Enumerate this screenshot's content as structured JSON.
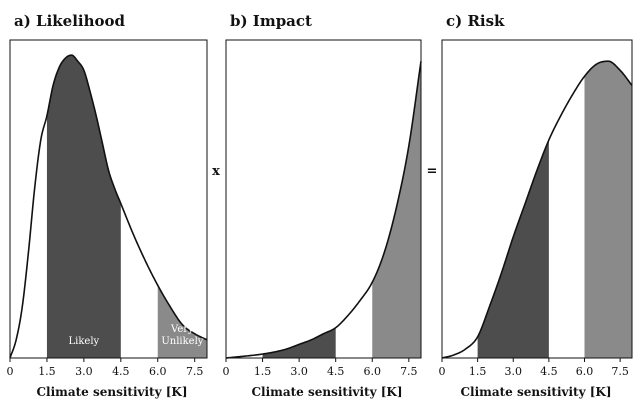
{
  "chart_data": [
    {
      "type": "area",
      "title": "a) Likelihood",
      "xlabel": "Climate sensitivity [K]",
      "ylabel": "",
      "xlim": [
        0,
        8
      ],
      "ylim": [
        0,
        1.05
      ],
      "xticks": [
        "0",
        "1.5",
        "3.0",
        "4.5",
        "6.0",
        "7.5"
      ],
      "x": [
        0,
        0.25,
        0.5,
        0.75,
        1.0,
        1.25,
        1.5,
        1.75,
        2.0,
        2.25,
        2.5,
        2.75,
        3.0,
        3.25,
        3.5,
        3.75,
        4.0,
        4.25,
        4.5,
        5.0,
        5.5,
        6.0,
        6.5,
        7.0,
        7.5,
        8.0
      ],
      "y": [
        0.0,
        0.06,
        0.17,
        0.35,
        0.56,
        0.72,
        0.8,
        0.9,
        0.96,
        0.99,
        1.0,
        0.98,
        0.95,
        0.88,
        0.8,
        0.71,
        0.62,
        0.56,
        0.51,
        0.41,
        0.32,
        0.24,
        0.17,
        0.11,
        0.08,
        0.06
      ],
      "regions": [
        {
          "from": 1.5,
          "to": 4.5,
          "label": "Likely",
          "color": "#4d4d4d"
        },
        {
          "from": 6.0,
          "to": 8.0,
          "label": "Very Unlikely",
          "color": "#8a8a8a"
        }
      ]
    },
    {
      "type": "area",
      "title": "b) Impact",
      "xlabel": "Climate sensitivity [K]",
      "ylabel": "",
      "xlim": [
        0,
        8
      ],
      "ylim": [
        0,
        1.05
      ],
      "xticks": [
        "0",
        "1.5",
        "3.0",
        "4.5",
        "6.0",
        "7.5"
      ],
      "x": [
        0,
        0.5,
        1.0,
        1.5,
        2.0,
        2.5,
        3.0,
        3.5,
        4.0,
        4.5,
        5.0,
        5.5,
        6.0,
        6.5,
        7.0,
        7.5,
        8.0
      ],
      "y": [
        0.0,
        0.004,
        0.008,
        0.013,
        0.02,
        0.03,
        0.045,
        0.06,
        0.08,
        0.1,
        0.14,
        0.19,
        0.25,
        0.35,
        0.5,
        0.7,
        0.98
      ],
      "regions": [
        {
          "from": 1.5,
          "to": 4.5,
          "label": "",
          "color": "#4d4d4d"
        },
        {
          "from": 6.0,
          "to": 8.0,
          "label": "",
          "color": "#8a8a8a"
        }
      ]
    },
    {
      "type": "area",
      "title": "c) Risk",
      "xlabel": "Climate sensitivity [K]",
      "ylabel": "",
      "xlim": [
        0,
        8
      ],
      "ylim": [
        0,
        1.05
      ],
      "xticks": [
        "0",
        "1.5",
        "3.0",
        "4.5",
        "6.0",
        "7.5"
      ],
      "x": [
        0,
        0.5,
        1.0,
        1.5,
        2.0,
        2.5,
        3.0,
        3.5,
        4.0,
        4.5,
        5.0,
        5.5,
        6.0,
        6.5,
        7.0,
        7.5,
        8.0
      ],
      "y": [
        0.0,
        0.01,
        0.03,
        0.07,
        0.17,
        0.28,
        0.4,
        0.51,
        0.62,
        0.72,
        0.8,
        0.87,
        0.93,
        0.97,
        0.98,
        0.95,
        0.9
      ],
      "regions": [
        {
          "from": 1.5,
          "to": 4.5,
          "label": "",
          "color": "#4d4d4d"
        },
        {
          "from": 6.0,
          "to": 8.0,
          "label": "",
          "color": "#8a8a8a"
        }
      ]
    }
  ],
  "operators": [
    "x",
    "="
  ]
}
